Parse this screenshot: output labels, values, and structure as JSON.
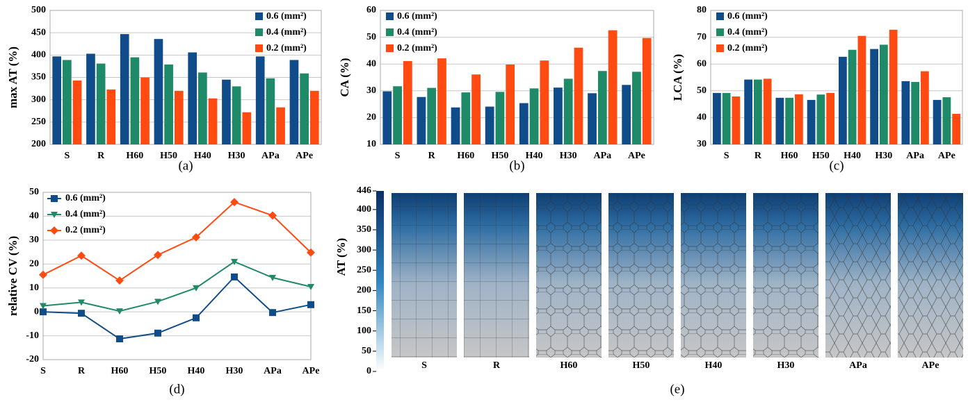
{
  "chart_data": [
    {
      "type": "bar",
      "label": "(a)",
      "y_label": "max AT (%)",
      "categories": [
        "S",
        "R",
        "H60",
        "H50",
        "H40",
        "H30",
        "APa",
        "APe"
      ],
      "series": [
        {
          "name": "0.6 (mm²)",
          "color": "#104b8a",
          "values": [
            397,
            403,
            447,
            436,
            406,
            345,
            397,
            389
          ]
        },
        {
          "name": "0.4 (mm²)",
          "color": "#1f8a68",
          "values": [
            389,
            381,
            395,
            379,
            361,
            330,
            348,
            359
          ]
        },
        {
          "name": "0.2 (mm²)",
          "color": "#ff4a12",
          "values": [
            343,
            323,
            350,
            320,
            303,
            272,
            283,
            320
          ]
        }
      ],
      "ylim": [
        200,
        500
      ],
      "yticks": [
        200,
        250,
        300,
        350,
        400,
        450,
        500
      ],
      "grid": true,
      "legend": "top-right"
    },
    {
      "type": "bar",
      "label": "(b)",
      "y_label": "CA (%)",
      "categories": [
        "S",
        "R",
        "H60",
        "H50",
        "H40",
        "H30",
        "APa",
        "APe"
      ],
      "series": [
        {
          "name": "0.6 (mm²)",
          "color": "#104b8a",
          "values": [
            29.8,
            27.7,
            23.8,
            24.1,
            25.4,
            31.2,
            29.1,
            32.2
          ]
        },
        {
          "name": "0.4 (mm²)",
          "color": "#1f8a68",
          "values": [
            31.7,
            31.1,
            29.4,
            29.6,
            30.9,
            34.5,
            37.4,
            37.1
          ]
        },
        {
          "name": "0.2 (mm²)",
          "color": "#ff4a12",
          "values": [
            41.1,
            42.1,
            36.1,
            39.8,
            41.3,
            46.1,
            52.6,
            49.7
          ]
        }
      ],
      "ylim": [
        10,
        60
      ],
      "yticks": [
        10,
        20,
        30,
        40,
        50,
        60
      ],
      "grid": true,
      "legend": "top-left"
    },
    {
      "type": "bar",
      "label": "(c)",
      "y_label": "LCA (%)",
      "categories": [
        "S",
        "R",
        "H60",
        "H50",
        "H40",
        "H30",
        "APa",
        "APe"
      ],
      "series": [
        {
          "name": "0.6 (mm²)",
          "color": "#104b8a",
          "values": [
            49.2,
            54.2,
            47.4,
            46.6,
            62.7,
            65.6,
            53.6,
            46.6
          ]
        },
        {
          "name": "0.4 (mm²)",
          "color": "#1f8a68",
          "values": [
            49.2,
            54.2,
            47.4,
            48.6,
            65.3,
            67.2,
            53.3,
            47.6
          ]
        },
        {
          "name": "0.2 (mm²)",
          "color": "#ff4a12",
          "values": [
            47.9,
            54.5,
            48.7,
            49.2,
            70.5,
            72.8,
            57.3,
            41.4
          ]
        }
      ],
      "ylim": [
        30,
        80
      ],
      "yticks": [
        30,
        40,
        50,
        60,
        70,
        80
      ],
      "grid": true,
      "legend": "top-left"
    },
    {
      "type": "line",
      "label": "(d)",
      "y_label": "relative CV (%)",
      "categories": [
        "S",
        "R",
        "H60",
        "H50",
        "H40",
        "H30",
        "APa",
        "APe"
      ],
      "series": [
        {
          "name": "0.6 (mm²)",
          "color": "#104b8a",
          "marker": "square",
          "values": [
            0,
            -0.6,
            -11.3,
            -8.9,
            -2.5,
            14.6,
            -0.3,
            3.0
          ]
        },
        {
          "name": "0.4 (mm²)",
          "color": "#1f8a68",
          "marker": "triangle-down",
          "values": [
            2.5,
            4.0,
            0.3,
            4.3,
            10.0,
            21.0,
            14.3,
            10.5
          ]
        },
        {
          "name": "0.2 (mm²)",
          "color": "#ff4a12",
          "marker": "diamond",
          "values": [
            15.5,
            23.5,
            13.1,
            23.8,
            31.2,
            45.9,
            40.3,
            24.8
          ]
        }
      ],
      "ylim": [
        -20,
        50
      ],
      "yticks": [
        -20,
        -10,
        0,
        10,
        20,
        30,
        40,
        50
      ],
      "grid": true,
      "legend": "top-left"
    },
    {
      "type": "image",
      "label": "(e)",
      "colorbar_label": "AT (%)",
      "categories": [
        "S",
        "R",
        "H60",
        "H50",
        "H40",
        "H30",
        "APa",
        "APe"
      ],
      "clim": [
        0,
        446
      ],
      "cticks": [
        0,
        50,
        100,
        150,
        200,
        250,
        300,
        350,
        400,
        446
      ],
      "colormap": [
        "#ffffff",
        "#2f86c0",
        "#0a2f66"
      ]
    }
  ]
}
